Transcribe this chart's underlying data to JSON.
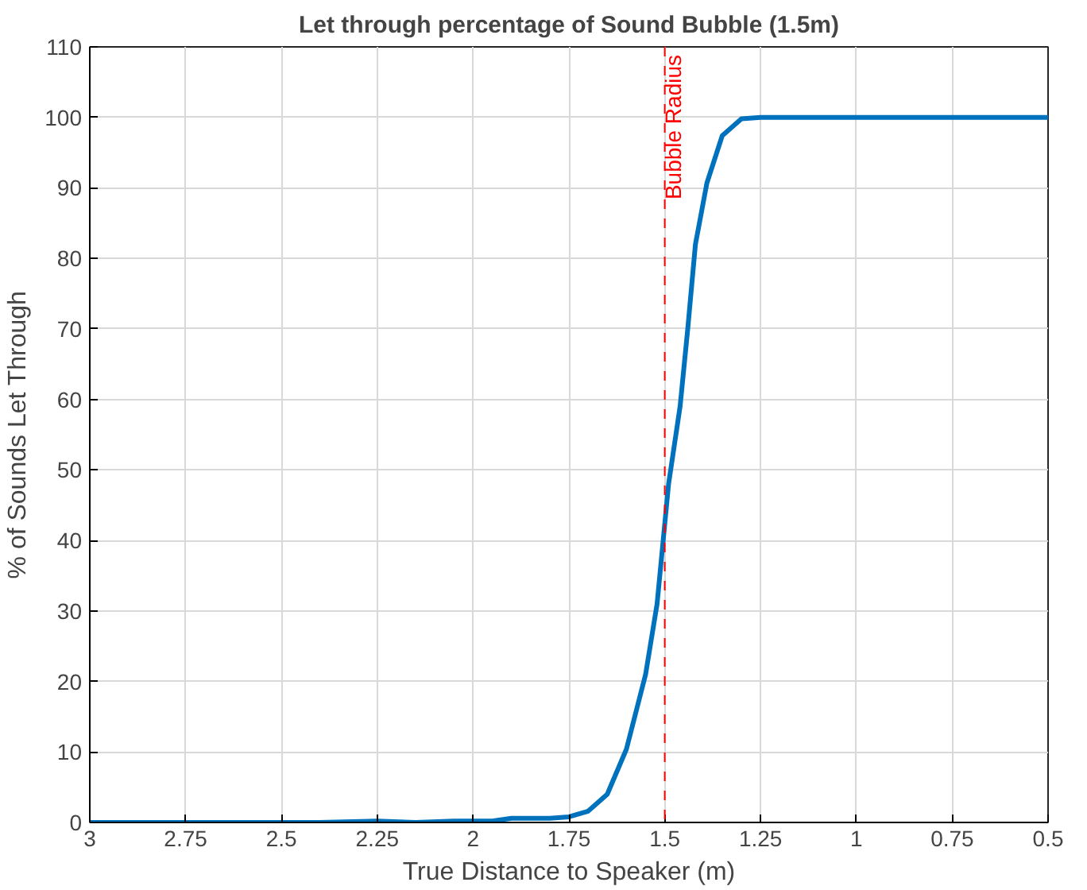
{
  "chart_data": {
    "type": "line",
    "title": "Let through percentage of Sound Bubble (1.5m)",
    "xlabel": "True Distance to Speaker (m)",
    "ylabel": "% of Sounds Let Through",
    "series": [
      {
        "color": "#0072bd",
        "x": [
          3,
          2.8,
          2.6,
          2.4,
          2.25,
          2.15,
          2.05,
          1.95,
          1.9,
          1.8,
          1.75,
          1.7,
          1.65,
          1.6,
          1.55,
          1.52,
          1.49,
          1.46,
          1.44,
          1.42,
          1.39,
          1.35,
          1.3,
          1.25,
          1.0,
          0.75,
          0.5
        ],
        "values": [
          0,
          0,
          0,
          0,
          0.2,
          0,
          0.2,
          0.2,
          0.6,
          0.6,
          0.8,
          1.6,
          4,
          10.4,
          21,
          31,
          48,
          59,
          70,
          82,
          90.7,
          97.4,
          99.8,
          100,
          100,
          100,
          100
        ]
      }
    ],
    "xlim": [
      3,
      0.5
    ],
    "ylim": [
      0,
      110
    ],
    "xticks": [
      3,
      2.75,
      2.5,
      2.25,
      2,
      1.75,
      1.5,
      1.25,
      1,
      0.75,
      0.5
    ],
    "yticks": [
      0,
      10,
      20,
      30,
      40,
      50,
      60,
      70,
      80,
      90,
      100,
      110
    ],
    "grid": true,
    "line_style": "solid",
    "marker": "none",
    "ref_lines": [
      {
        "axis": "x",
        "value": 1.5,
        "label": "Bubble Radius",
        "color": "#ff0000",
        "line_style": "dashed"
      }
    ]
  }
}
